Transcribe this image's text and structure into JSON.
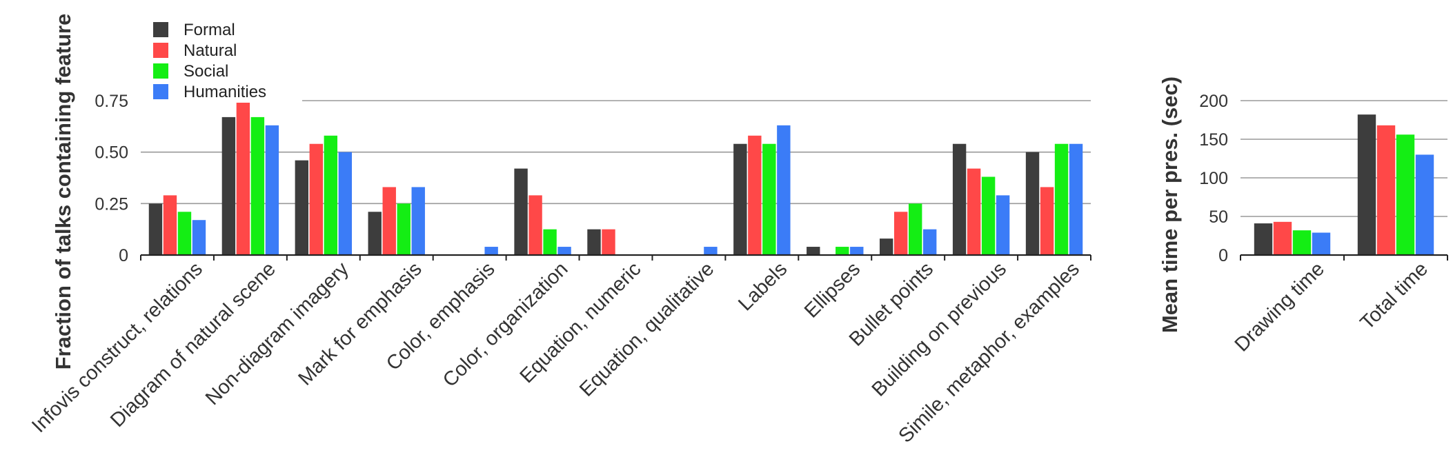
{
  "colors": {
    "Formal": "#3d3d3d",
    "Natural": "#ff4848",
    "Social": "#14ee14",
    "Humanities": "#3b7cf7",
    "grid": "#999999",
    "axis": "#222222"
  },
  "chart_data": [
    {
      "type": "bar",
      "ylabel": "Fraction of talks containing feature",
      "ylim": [
        0,
        0.75
      ],
      "yticks": [
        "0",
        "0.25",
        "0.50",
        "0.75"
      ],
      "grid": true,
      "legend": "top-left",
      "categories": [
        "Infovis construct, relations",
        "Diagram of natural scene",
        "Non-diagram imagery",
        "Mark for emphasis",
        "Color, emphasis",
        "Color, organization",
        "Equation, numeric",
        "Equation, qualitative",
        "Labels",
        "Ellipses",
        "Bullet points",
        "Building on previous",
        "Simile, metaphor, examples"
      ],
      "series": [
        {
          "name": "Formal",
          "values": [
            0.25,
            0.67,
            0.46,
            0.21,
            0.0,
            0.42,
            0.125,
            0.0,
            0.54,
            0.04,
            0.08,
            0.54,
            0.5
          ]
        },
        {
          "name": "Natural",
          "values": [
            0.29,
            0.74,
            0.54,
            0.33,
            0.0,
            0.29,
            0.125,
            0.0,
            0.58,
            0.0,
            0.21,
            0.42,
            0.33
          ]
        },
        {
          "name": "Social",
          "values": [
            0.21,
            0.67,
            0.58,
            0.25,
            0.0,
            0.125,
            0.0,
            0.0,
            0.54,
            0.04,
            0.25,
            0.38,
            0.54
          ]
        },
        {
          "name": "Humanities",
          "values": [
            0.17,
            0.63,
            0.5,
            0.33,
            0.04,
            0.04,
            0.0,
            0.04,
            0.63,
            0.04,
            0.125,
            0.29,
            0.54
          ]
        }
      ]
    },
    {
      "type": "bar",
      "ylabel": "Mean time per pres. (sec)",
      "ylim": [
        0,
        200
      ],
      "yticks": [
        "0",
        "50",
        "100",
        "150",
        "200"
      ],
      "grid": true,
      "categories": [
        "Drawing time",
        "Total time"
      ],
      "series": [
        {
          "name": "Formal",
          "values": [
            41,
            182
          ]
        },
        {
          "name": "Natural",
          "values": [
            43,
            168
          ]
        },
        {
          "name": "Social",
          "values": [
            32,
            156
          ]
        },
        {
          "name": "Humanities",
          "values": [
            29,
            130
          ]
        }
      ]
    }
  ]
}
